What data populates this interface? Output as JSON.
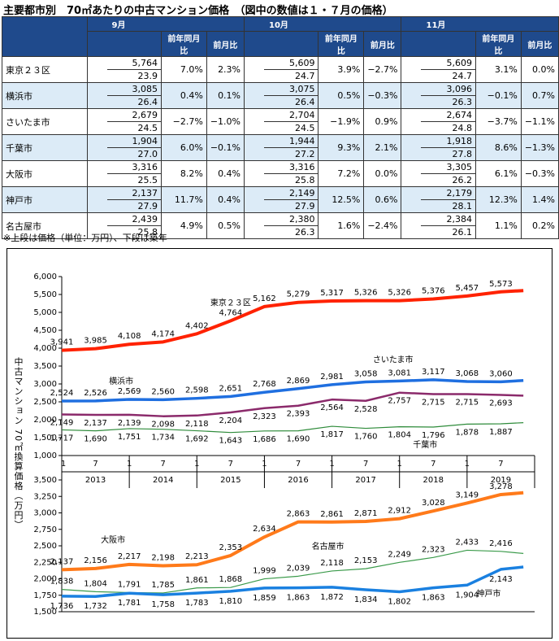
{
  "title": "主要都市別　70㎡あたりの中古マンション価格　（図中の数値は１・７月の価格）",
  "table": {
    "months": [
      "9月",
      "10月",
      "11月"
    ],
    "subheaders": [
      "前年同月比",
      "前月比"
    ],
    "rows": [
      {
        "city": "東京２３区",
        "cells": [
          [
            "5,764",
            "23.9",
            "7.0%",
            "2.3%"
          ],
          [
            "5,609",
            "24.7",
            "3.9%",
            "−2.7%"
          ],
          [
            "5,609",
            "24.7",
            "3.1%",
            "0.0%"
          ]
        ]
      },
      {
        "city": "横浜市",
        "cells": [
          [
            "3,085",
            "26.4",
            "0.4%",
            "0.1%"
          ],
          [
            "3,075",
            "26.4",
            "0.5%",
            "−0.3%"
          ],
          [
            "3,096",
            "26.3",
            "−0.1%",
            "0.7%"
          ]
        ]
      },
      {
        "city": "さいたま市",
        "cells": [
          [
            "2,679",
            "24.5",
            "−2.7%",
            "−1.0%"
          ],
          [
            "2,704",
            "24.5",
            "−1.9%",
            "0.9%"
          ],
          [
            "2,674",
            "24.8",
            "−3.7%",
            "−1.1%"
          ]
        ]
      },
      {
        "city": "千葉市",
        "cells": [
          [
            "1,904",
            "27.0",
            "6.0%",
            "−0.1%"
          ],
          [
            "1,944",
            "27.2",
            "9.3%",
            "2.1%"
          ],
          [
            "1,918",
            "27.8",
            "8.6%",
            "−1.3%"
          ]
        ]
      },
      {
        "city": "大阪市",
        "cells": [
          [
            "3,316",
            "25.5",
            "8.2%",
            "0.4%"
          ],
          [
            "3,316",
            "25.8",
            "7.2%",
            "0.0%"
          ],
          [
            "3,305",
            "26.2",
            "6.1%",
            "−0.3%"
          ]
        ]
      },
      {
        "city": "神戸市",
        "cells": [
          [
            "2,137",
            "27.9",
            "11.7%",
            "0.4%"
          ],
          [
            "2,149",
            "27.9",
            "12.5%",
            "0.6%"
          ],
          [
            "2,179",
            "28.1",
            "12.3%",
            "1.4%"
          ]
        ]
      },
      {
        "city": "名古屋市",
        "cells": [
          [
            "2,439",
            "25.8",
            "4.9%",
            "0.5%"
          ],
          [
            "2,380",
            "26.3",
            "1.6%",
            "−2.4%"
          ],
          [
            "2,384",
            "26.1",
            "1.1%",
            "0.2%"
          ]
        ]
      }
    ]
  },
  "note": "※上段は価格（単位：万円）、下段は築年",
  "chart_data": [
    {
      "type": "line",
      "y_label": "中古マンション 70㎡換算価格（万円）",
      "categories": [
        "1",
        "7",
        "1",
        "7",
        "1",
        "7",
        "1",
        "7",
        "1",
        "7",
        "1",
        "7",
        "1",
        "7",
        null
      ],
      "years": [
        "2013",
        "2014",
        "2015",
        "2016",
        "2017",
        "2018",
        "2019"
      ],
      "ylim": [
        1000,
        6000
      ],
      "yticks": [
        {
          "value": 1000,
          "label": "1,000"
        },
        {
          "value": 1500,
          "label": "1,500"
        },
        {
          "value": 2000,
          "label": "2,000"
        },
        {
          "value": 2500,
          "label": "2,500"
        },
        {
          "value": 3000,
          "label": "3,000"
        },
        {
          "value": 3500,
          "label": "3,500"
        },
        {
          "value": 4000,
          "label": "4,000"
        },
        {
          "value": 4500,
          "label": "4,500"
        },
        {
          "value": 5000,
          "label": "5,000"
        },
        {
          "value": 5500,
          "label": "5,500"
        },
        {
          "value": 6000,
          "label": "6,000"
        }
      ],
      "series": [
        {
          "name": "東京２３区",
          "color": "#ff2200",
          "values": [
            3941,
            3985,
            4108,
            4174,
            4402,
            4764,
            5162,
            5279,
            5317,
            5326,
            5326,
            5376,
            5457,
            5573,
            5609
          ],
          "value_labels": [
            "3,941",
            "3,985",
            "4,108",
            "4,174",
            "4,402",
            "4,764",
            "5,162",
            "5,279",
            "5,317",
            "5,326",
            "5,326",
            "5,376",
            "5,457",
            "5,573",
            null
          ]
        },
        {
          "name": "横浜市",
          "color": "#1f6fe0",
          "values": [
            2524,
            2526,
            2569,
            2560,
            2598,
            2651,
            2768,
            2869,
            2981,
            3058,
            3081,
            3117,
            3068,
            3060,
            3096
          ],
          "value_labels": [
            "2,524",
            "2,526",
            "2,569",
            "2,560",
            "2,598",
            "2,651",
            "2,768",
            "2,869",
            "2,981",
            "3,058",
            "3,081",
            "3,117",
            "3,068",
            "3,060",
            null
          ]
        },
        {
          "name": "さいたま市",
          "color": "#8b2a6b",
          "values": [
            2149,
            2137,
            2139,
            2098,
            2118,
            2204,
            2323,
            2393,
            2564,
            2528,
            2757,
            2715,
            2715,
            2693,
            2674
          ],
          "value_labels": [
            "2,149",
            "2,137",
            "2,139",
            "2,098",
            "2,118",
            "2,204",
            "2,323",
            "2,393",
            "2,564",
            "2,528",
            "2,757",
            "2,715",
            "2,715",
            "2,693",
            null
          ]
        },
        {
          "name": "千葉市",
          "color": "#2e8b3a",
          "values": [
            1717,
            1690,
            1751,
            1734,
            1692,
            1643,
            1686,
            1690,
            1817,
            1760,
            1804,
            1796,
            1878,
            1887,
            1918
          ],
          "value_labels": [
            "1,717",
            "1,690",
            "1,751",
            "1,734",
            "1,692",
            "1,643",
            "1,686",
            "1,690",
            "1,817",
            "1,760",
            "1,804",
            "1,796",
            "1,878",
            "1,887",
            null
          ]
        }
      ]
    },
    {
      "type": "line",
      "categories": [
        "1",
        "7",
        "1",
        "7",
        "1",
        "7",
        "1",
        "7",
        "1",
        "7",
        "1",
        "7",
        "1",
        "7",
        null
      ],
      "ylim": [
        1500,
        3500
      ],
      "yticks": [
        {
          "value": 1500,
          "label": "1,500"
        },
        {
          "value": 1750,
          "label": "1,750"
        },
        {
          "value": 2000,
          "label": "2,000"
        },
        {
          "value": 2250,
          "label": "2,250"
        },
        {
          "value": 2500,
          "label": "2,500"
        },
        {
          "value": 2750,
          "label": "2,750"
        },
        {
          "value": 3000,
          "label": "3,000"
        },
        {
          "value": 3250,
          "label": "3,250"
        },
        {
          "value": 3500,
          "label": "3,500"
        }
      ],
      "series": [
        {
          "name": "大阪市",
          "color": "#ff7a1a",
          "values": [
            2137,
            2156,
            2217,
            2198,
            2213,
            2353,
            2634,
            2863,
            2861,
            2871,
            2912,
            3028,
            3149,
            3278,
            3305
          ],
          "value_labels": [
            "2,137",
            "2,156",
            "2,217",
            "2,198",
            "2,213",
            "2,353",
            "2,634",
            "2,863",
            "2,861",
            "2,871",
            "2,912",
            "3,028",
            "3,149",
            "3,278",
            null
          ]
        },
        {
          "name": "名古屋市",
          "color": "#3a9a4a",
          "values": [
            1838,
            1804,
            1791,
            1785,
            1861,
            1868,
            1999,
            2039,
            2118,
            2153,
            2249,
            2323,
            2433,
            2416,
            2384
          ],
          "value_labels": [
            "1,838",
            "1,804",
            "1,791",
            "1,785",
            "1,861",
            "1,868",
            "1,999",
            "2,039",
            "2,118",
            "2,153",
            "2,249",
            "2,323",
            "2,433",
            "2,416",
            null
          ]
        },
        {
          "name": "神戸市",
          "color": "#1a80e0",
          "values": [
            1736,
            1732,
            1781,
            1758,
            1783,
            1810,
            1859,
            1863,
            1872,
            1834,
            1802,
            1863,
            1904,
            2143,
            2179
          ],
          "value_labels": [
            "1,736",
            "1,732",
            "1,781",
            "1,758",
            "1,783",
            "1,810",
            "1,859",
            "1,863",
            "1,872",
            "1,834",
            "1,802",
            "1,863",
            "1,904",
            "2,143",
            null
          ]
        }
      ]
    }
  ]
}
